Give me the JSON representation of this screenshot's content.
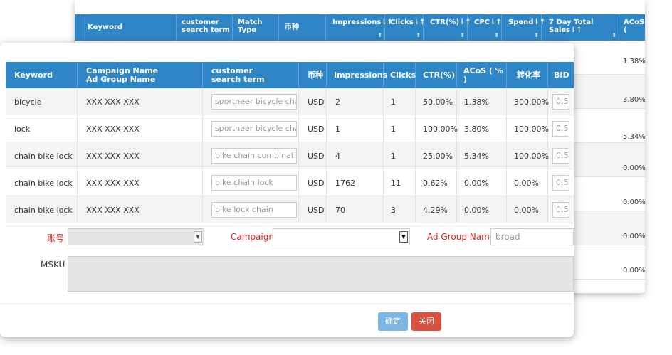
{
  "background_table": {
    "columns": [
      {
        "label": "Keyword",
        "sort": ""
      },
      {
        "label": "customer search term",
        "sort": ""
      },
      {
        "label": "Match Type",
        "sort": ""
      },
      {
        "label": "币种",
        "sort": ""
      },
      {
        "label": "Impressions⇂↑",
        "sort": "⬍"
      },
      {
        "label": "Clicks⇂↑",
        "sort": "⬍"
      },
      {
        "label": "CTR(%)⇂↑",
        "sort": "⬍"
      },
      {
        "label": "CPC⇂↑",
        "sort": "⬍"
      },
      {
        "label": "Spend⇂↑",
        "sort": "⬍"
      },
      {
        "label": "7 Day Total Sales⇂↑",
        "sort": "⬍"
      },
      {
        "label": "ACoS (",
        "sort": ""
      }
    ],
    "acos_values": [
      "1.38%",
      "3.80%",
      "5.34%",
      "0.00%",
      "0.00%",
      "0.00%",
      "0.00%"
    ]
  },
  "modal_table": {
    "columns": {
      "keyword": "Keyword",
      "campaign_name": "Campaign Name",
      "ad_group_name": "Ad Group Name",
      "search_term_1": "customer",
      "search_term_2": "search term",
      "currency": "币种",
      "impressions": "Impressions",
      "clicks": "Clicks",
      "ctr": "CTR(%)",
      "acos": "ACoS ( % )",
      "conversion": "转化率",
      "bid": "BID"
    },
    "rows": [
      {
        "keyword": "bicycle",
        "campaign": "XXX XXX XXX",
        "search_term": "sportneer bicycle chain",
        "currency": "USD",
        "impressions": "2",
        "clicks": "1",
        "ctr": "50.00%",
        "acos": "1.38%",
        "conversion": "300.00%",
        "bid": "0.5"
      },
      {
        "keyword": "lock",
        "campaign": "XXX XXX XXX",
        "search_term": "sportneer bicycle chain",
        "currency": "USD",
        "impressions": "1",
        "clicks": "1",
        "ctr": "100.00%",
        "acos": "3.80%",
        "conversion": "100.00%",
        "bid": "0.5"
      },
      {
        "keyword": "chain bike lock",
        "campaign": "XXX XXX XXX",
        "search_term": "bike chain combination",
        "currency": "USD",
        "impressions": "4",
        "clicks": "1",
        "ctr": "25.00%",
        "acos": "5.34%",
        "conversion": "100.00%",
        "bid": "0.5"
      },
      {
        "keyword": "chain bike lock",
        "campaign": "XXX XXX XXX",
        "search_term": "bike chain lock",
        "currency": "USD",
        "impressions": "1762",
        "clicks": "11",
        "ctr": "0.62%",
        "acos": "0.00%",
        "conversion": "0.00%",
        "bid": "0.5"
      },
      {
        "keyword": "chain bike lock",
        "campaign": "XXX XXX XXX",
        "search_term": "bike lock chain",
        "currency": "USD",
        "impressions": "70",
        "clicks": "3",
        "ctr": "4.29%",
        "acos": "0.00%",
        "conversion": "0.00%",
        "bid": "0.5"
      }
    ]
  },
  "form": {
    "account_label": "账号",
    "campaign_label": "Campaign",
    "ad_group_label": "Ad Group Name",
    "ad_group_value": "broad",
    "msku_label": "MSKU",
    "confirm_label": "确定",
    "close_label": "关闭"
  },
  "colors": {
    "header_blue": "#2f86c6",
    "label_red": "#d9261c",
    "confirm_blue": "#7ab6e6",
    "close_red": "#d9503f"
  }
}
